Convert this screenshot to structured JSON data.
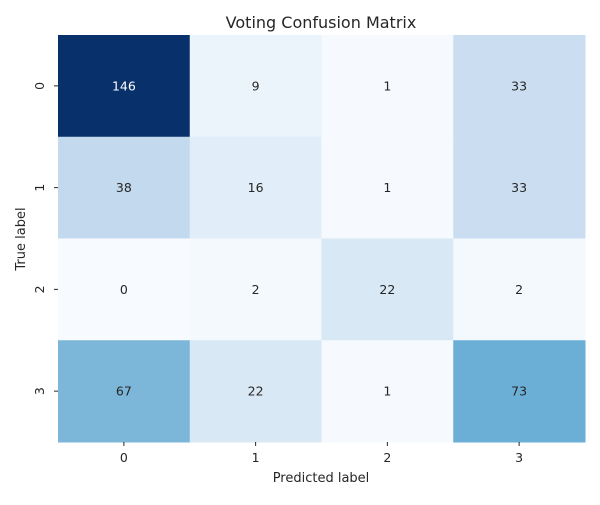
{
  "chart_data": {
    "type": "heatmap",
    "title": "Voting Confusion Matrix",
    "xlabel": "Predicted label",
    "ylabel": "True label",
    "x_categories": [
      "0",
      "1",
      "2",
      "3"
    ],
    "y_categories": [
      "0",
      "1",
      "2",
      "3"
    ],
    "values": [
      [
        146,
        9,
        1,
        33
      ],
      [
        38,
        16,
        1,
        33
      ],
      [
        0,
        2,
        22,
        2
      ],
      [
        67,
        22,
        1,
        73
      ]
    ],
    "colormap": "Blues",
    "vmin": 0,
    "vmax": 146,
    "colorbar": false
  }
}
